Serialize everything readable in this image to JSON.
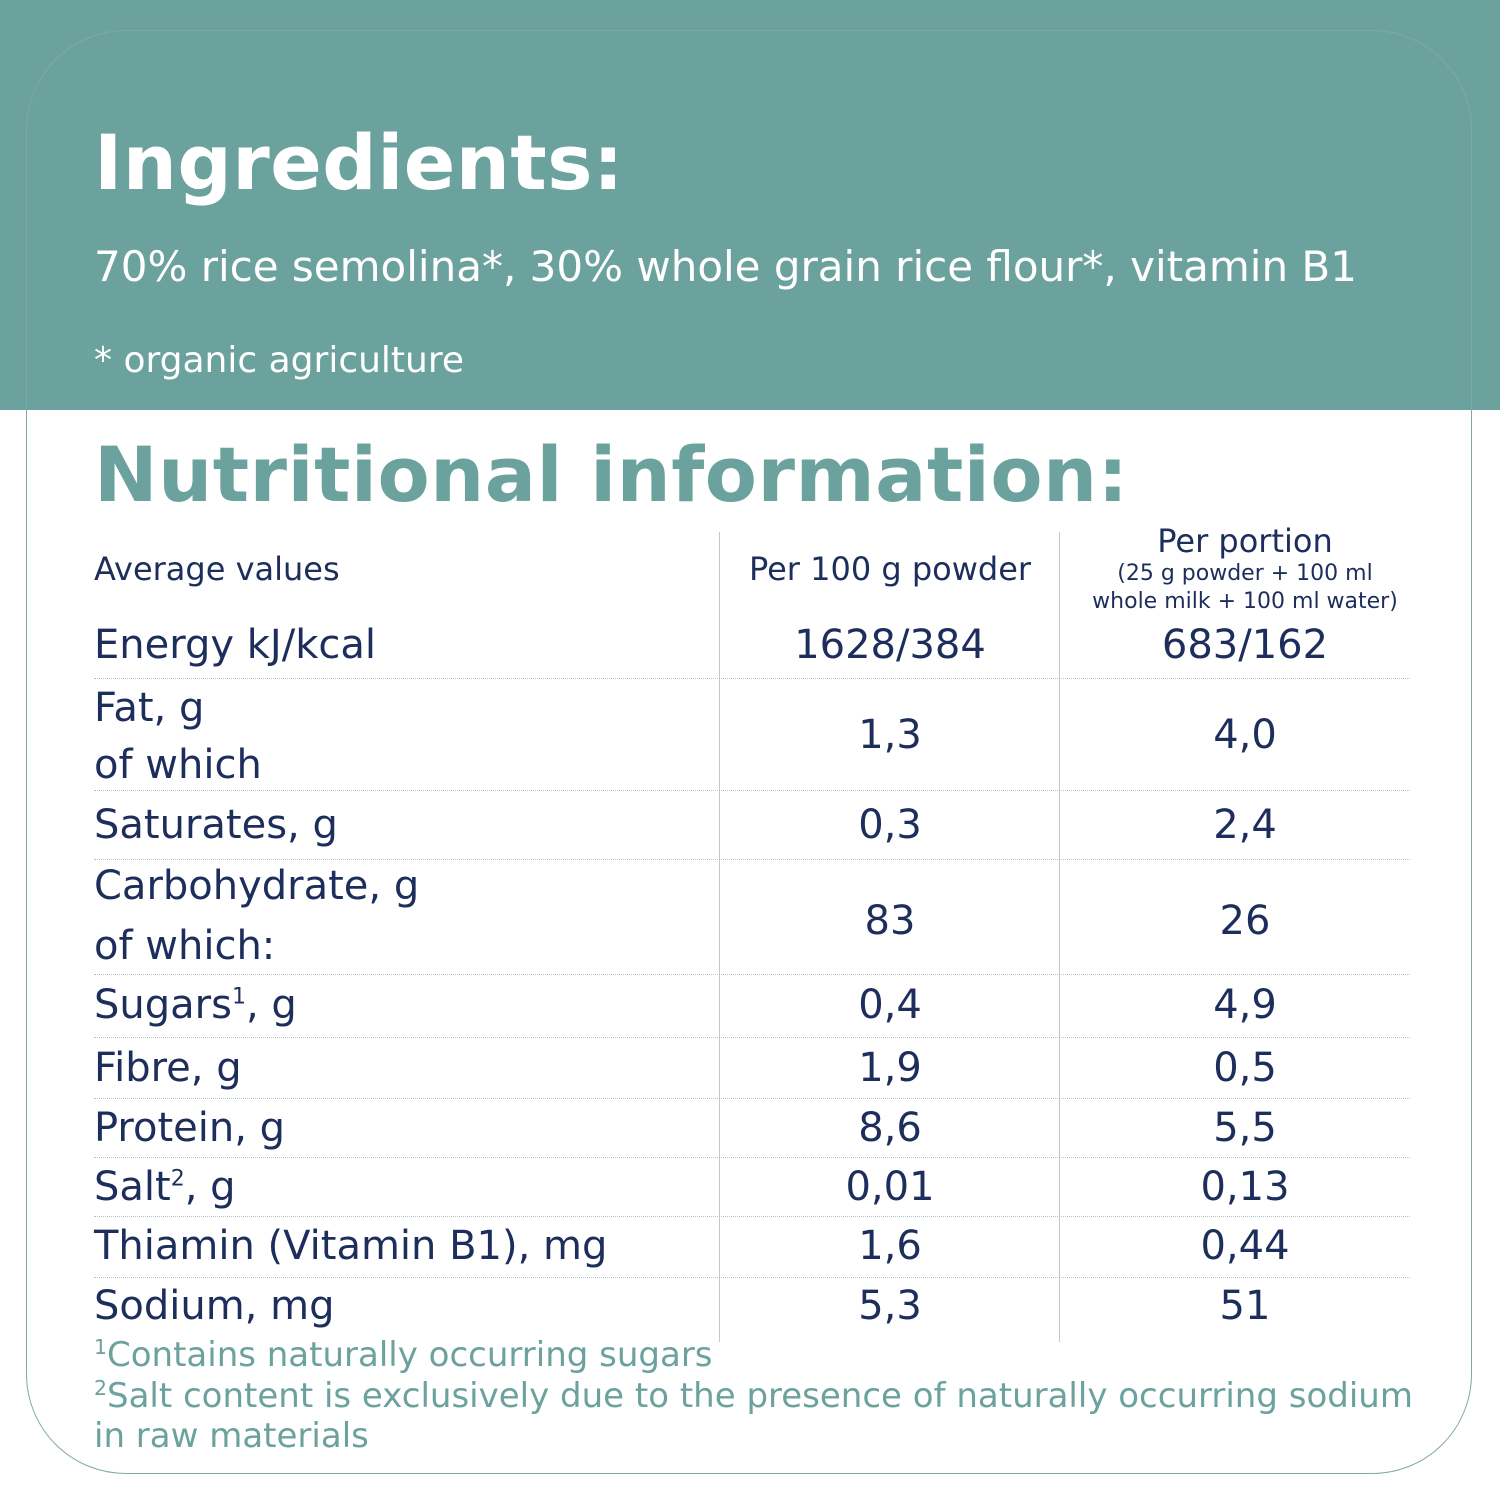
{
  "ingredients": {
    "title": "Ingredients:",
    "text": "70% rice semolina*, 30% whole grain rice flour*, vitamin B1",
    "note": "* organic agriculture"
  },
  "nutrition": {
    "title": "Nutritional information:",
    "header": {
      "label": "Average values",
      "col1": "Per 100 g powder",
      "col2_title": "Per portion",
      "col2_sub1": "(25 g powder + 100 ml",
      "col2_sub2": "whole milk + 100 ml water)"
    },
    "rows": [
      {
        "label": "Energy kJ/kcal",
        "v1": "1628/384",
        "v2": "683/162"
      },
      {
        "label": "Fat, g",
        "label2": "of which",
        "v1": "1,3",
        "v2": "4,0"
      },
      {
        "label": "Saturates, g",
        "v1": "0,3",
        "v2": "2,4"
      },
      {
        "label": "Carbohydrate, g",
        "label2": "of which:",
        "v1": "83",
        "v2": "26"
      },
      {
        "label": "Sugars",
        "sup": "1",
        "label_suffix": ", g",
        "v1": "0,4",
        "v2": "4,9"
      },
      {
        "label": "Fibre, g",
        "v1": "1,9",
        "v2": "0,5"
      },
      {
        "label": "Protein, g",
        "v1": "8,6",
        "v2": "5,5"
      },
      {
        "label": "Salt",
        "sup": "2",
        "label_suffix": ", g",
        "v1": "0,01",
        "v2": "0,13"
      },
      {
        "label": "Thiamin (Vitamin B1), mg",
        "v1": "1,6",
        "v2": "0,44"
      },
      {
        "label": "Sodium, mg",
        "v1": "5,3",
        "v2": "51"
      }
    ],
    "footnotes": [
      {
        "mark": "1",
        "text": "Contains naturally occurring sugars"
      },
      {
        "mark": "2",
        "text": "Salt content is exclusively due to the presence of naturally occurring sodium"
      },
      {
        "mark": "",
        "text": "in raw materials"
      }
    ]
  },
  "colors": {
    "teal": "#6ca29d",
    "navy_text": "#1d2e5c",
    "white": "#ffffff"
  }
}
